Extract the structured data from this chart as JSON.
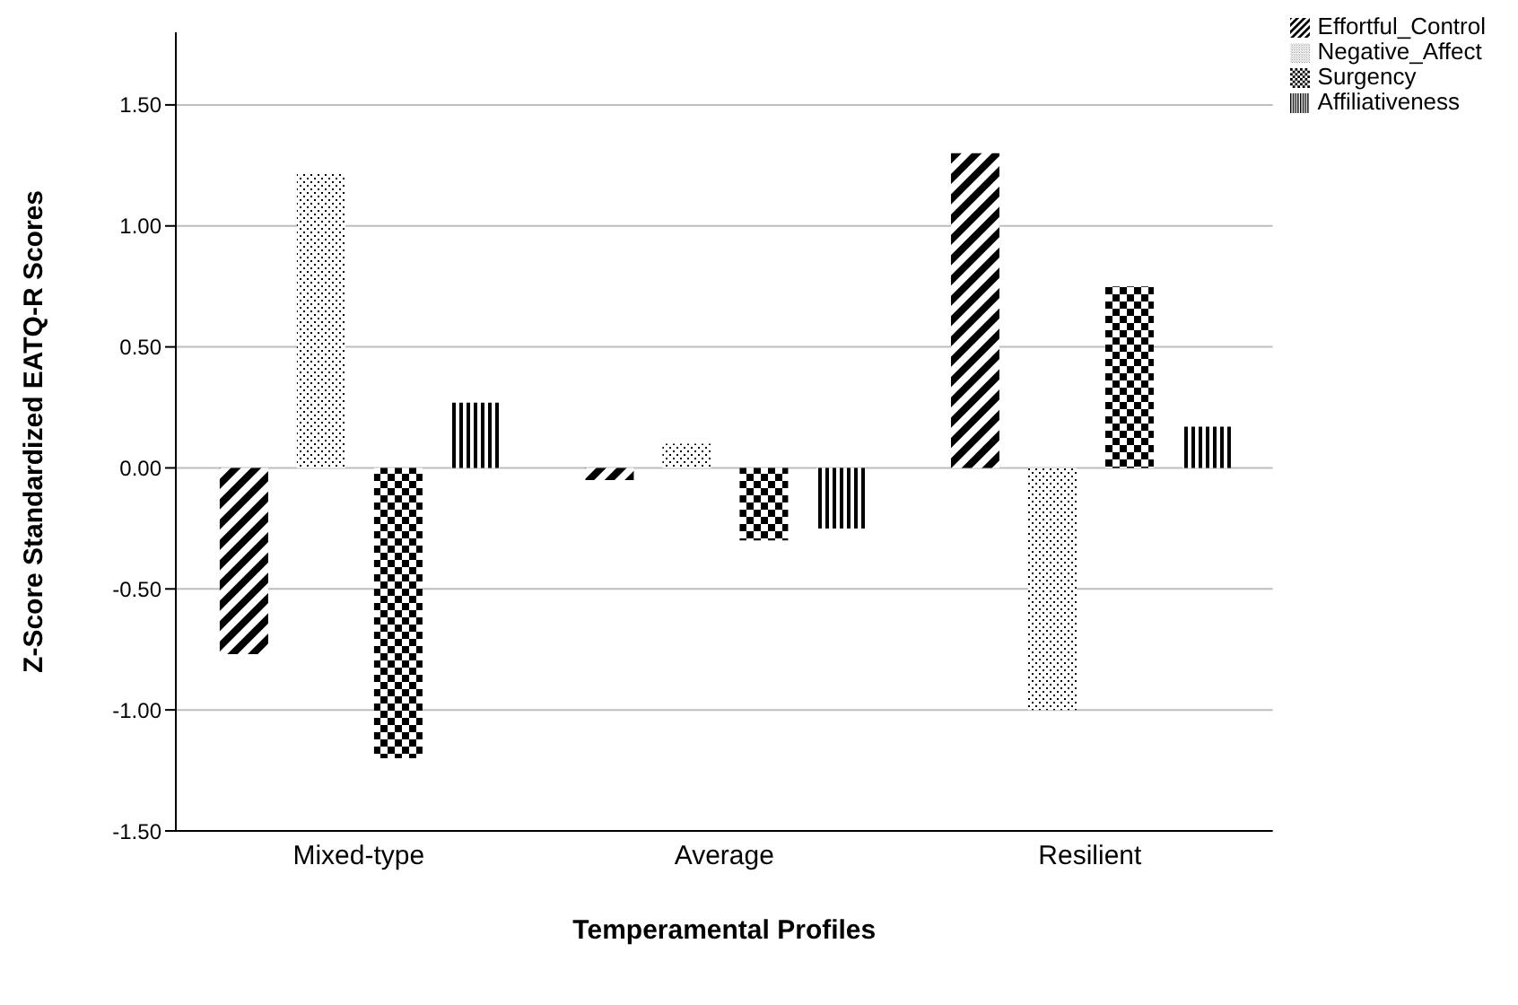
{
  "chart_data": {
    "type": "bar",
    "xlabel": "Temperamental Profiles",
    "ylabel": "Z-Score Standardized EATQ-R Scores",
    "categories": [
      "Mixed-type",
      "Average",
      "Resilient"
    ],
    "series": [
      {
        "name": "Effortful_Control",
        "color": "#000000",
        "values": [
          -0.77,
          -0.05,
          1.3
        ]
      },
      {
        "name": "Negative_Affect",
        "color": "#000000",
        "values": [
          1.22,
          0.1,
          -1.0
        ]
      },
      {
        "name": "Surgency",
        "color": "#000000",
        "values": [
          -1.2,
          -0.3,
          0.75
        ]
      },
      {
        "name": "Affiliativeness",
        "color": "#000000",
        "values": [
          0.27,
          -0.25,
          0.17
        ]
      }
    ],
    "ylim": [
      -1.5,
      1.8
    ],
    "yticks": [
      {
        "value": -1.5,
        "label": "-1.50"
      },
      {
        "value": -1,
        "label": "-1.00"
      },
      {
        "value": -0.5,
        "label": "-0.50"
      },
      {
        "value": 0,
        "label": "0.00"
      },
      {
        "value": 0.5,
        "label": "0.50"
      },
      {
        "value": 1,
        "label": "1.00"
      },
      {
        "value": 1.5,
        "label": "1.50"
      }
    ],
    "grid": "y",
    "legend": "top right"
  }
}
